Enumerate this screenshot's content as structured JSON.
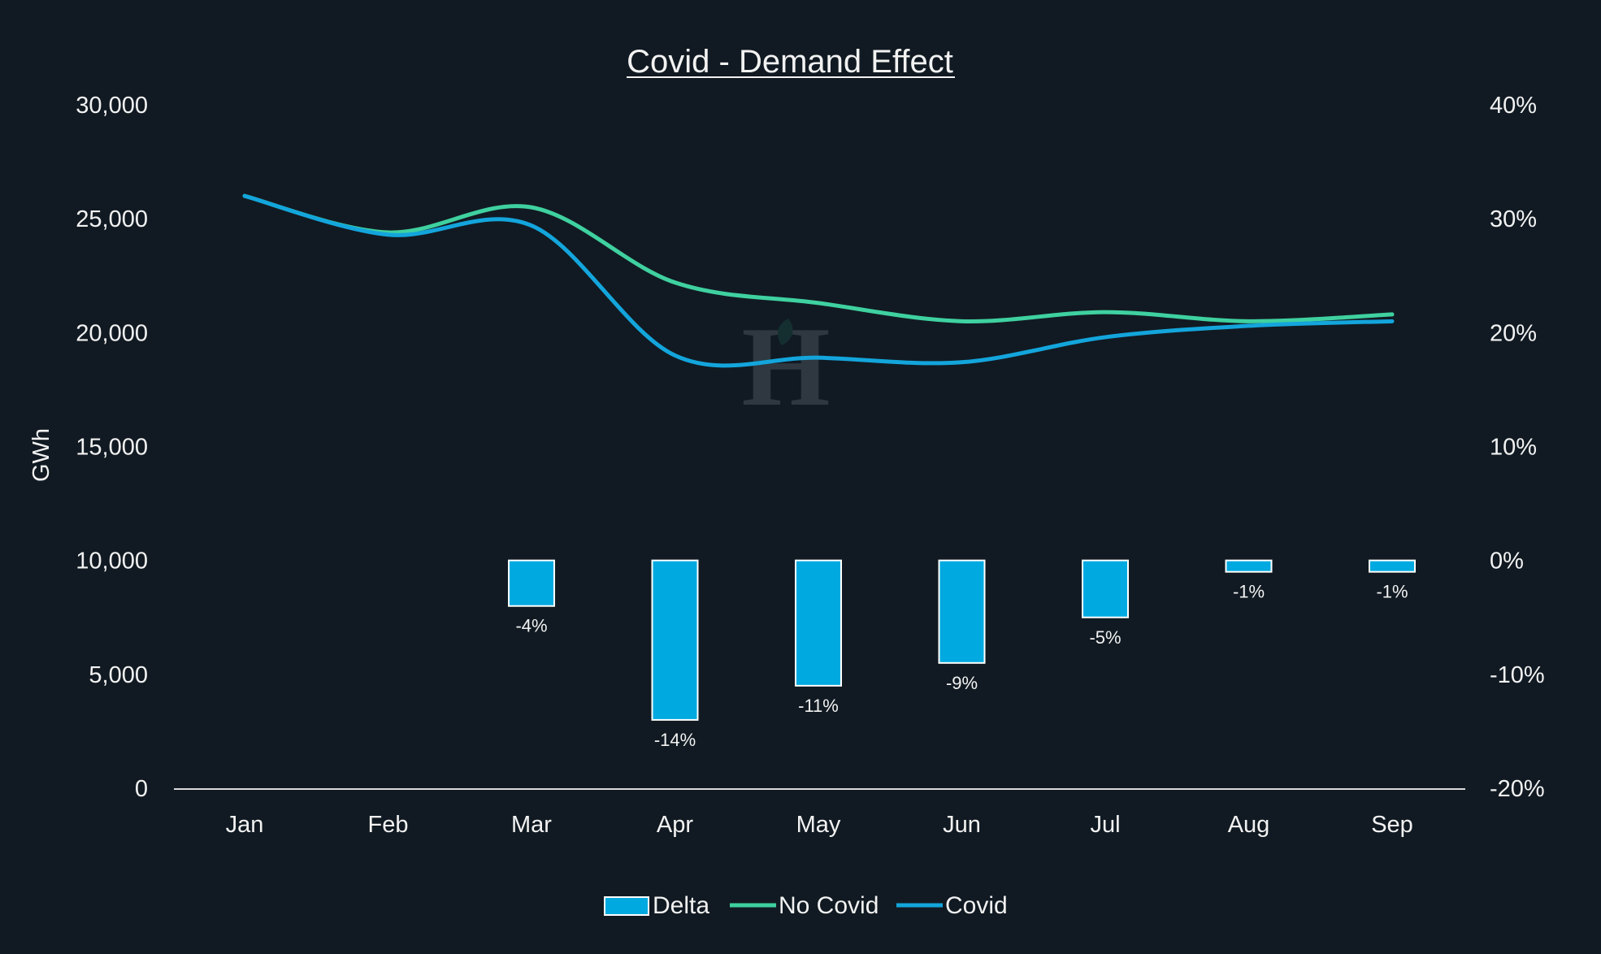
{
  "chart_data": {
    "type": "bar",
    "title": "Covid - Demand Effect",
    "ylabel": "GWh",
    "ylabel_right": "",
    "xlabel": "",
    "categories": [
      "Jan",
      "Feb",
      "Mar",
      "Apr",
      "May",
      "Jun",
      "Jul",
      "Aug",
      "Sep"
    ],
    "ylim": [
      0,
      30000
    ],
    "y_ticks": [
      "0",
      "5,000",
      "10,000",
      "15,000",
      "20,000",
      "25,000",
      "30,000"
    ],
    "y2lim": [
      -0.2,
      0.4
    ],
    "y2_ticks": [
      "-20%",
      "-10%",
      "0%",
      "10%",
      "20%",
      "30%",
      "40%"
    ],
    "series": [
      {
        "name": "Delta",
        "kind": "bar",
        "axis": "right",
        "values": [
          null,
          null,
          -0.04,
          -0.14,
          -0.11,
          -0.09,
          -0.05,
          -0.01,
          -0.01
        ],
        "labels": [
          "",
          "",
          "-4%",
          "-14%",
          "-11%",
          "-9%",
          "-5%",
          "-1%",
          "-1%"
        ],
        "color": "#00a9e0"
      },
      {
        "name": "No Covid",
        "kind": "line",
        "axis": "left",
        "values": [
          26000,
          24400,
          25500,
          22200,
          21300,
          20500,
          20900,
          20500,
          20800
        ],
        "color": "#3fd1a0"
      },
      {
        "name": "Covid",
        "kind": "line",
        "axis": "left",
        "values": [
          26000,
          24300,
          24700,
          19000,
          18900,
          18700,
          19800,
          20300,
          20500
        ],
        "color": "#13a5dc"
      }
    ],
    "grid": false,
    "legend": "bottom-center"
  },
  "colors": {
    "background": "#111a22",
    "text": "#f2f2f2",
    "axis": "#d9d9d9",
    "bar_border": "#ffffff"
  },
  "watermark": {
    "letter": "H"
  }
}
